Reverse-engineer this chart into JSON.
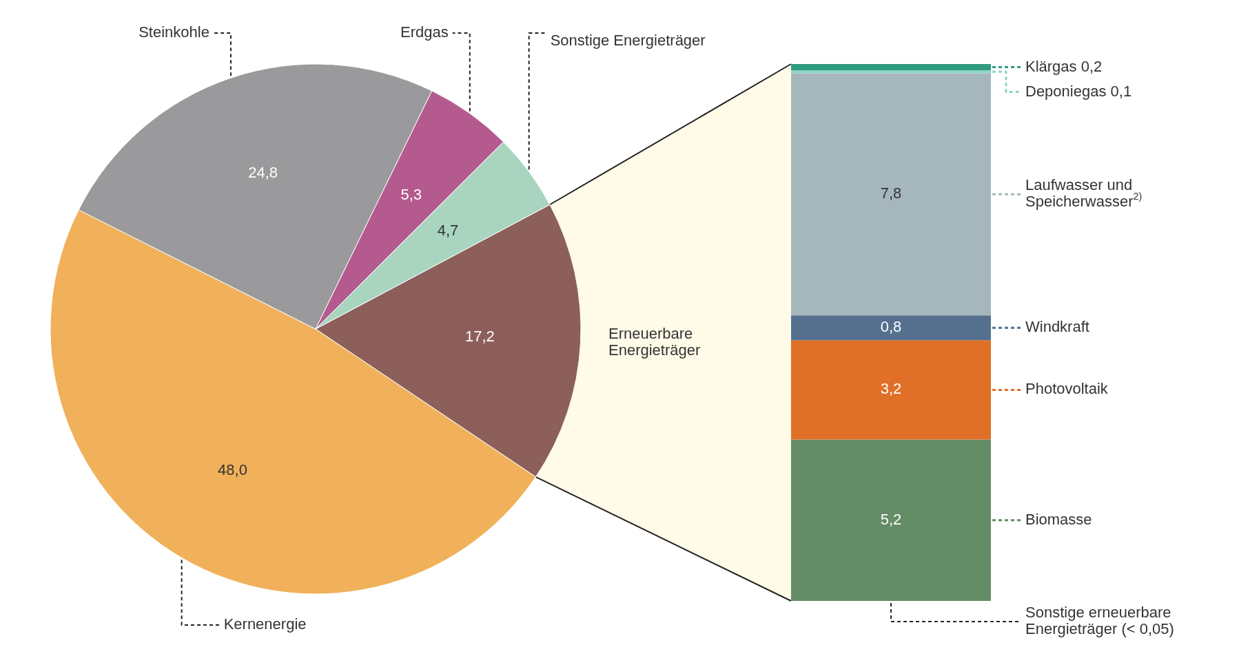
{
  "chart_data": [
    {
      "type": "pie",
      "categories": [
        "Erneuerbare Energieträger",
        "Kernenergie",
        "Steinkohle",
        "Erdgas",
        "Sonstige Energieträger"
      ],
      "values": [
        17.2,
        48.0,
        24.8,
        5.3,
        4.7
      ],
      "value_labels": [
        "17,2",
        "48,0",
        "24,8",
        "5,3",
        "4,7"
      ],
      "colors": [
        "#8c5f5b",
        "#f0b15a",
        "#9a9a9c",
        "#b55a8f",
        "#a9d5c0"
      ]
    },
    {
      "type": "bar",
      "stacked": true,
      "legend": "right",
      "categories": [
        null
      ],
      "annotations": [
        "Sonstige erneuerbare Energieträger (< 0,05)"
      ],
      "series": [
        {
          "name": "Biomasse",
          "color": "#648c66",
          "values": [
            5.2
          ],
          "value_labels": [
            "5,2"
          ]
        },
        {
          "name": "Photovoltaik",
          "color": "#e07028",
          "values": [
            3.2
          ],
          "value_labels": [
            "3,2"
          ]
        },
        {
          "name": "Windkraft",
          "color": "#55708f",
          "values": [
            0.8
          ],
          "value_labels": [
            "0,8"
          ]
        },
        {
          "name": "Laufwasser und Speicherwasser$^{2)}$",
          "color": "#a5b6bc",
          "values": [
            7.8
          ],
          "value_labels": [
            "7,8"
          ]
        },
        {
          "name": "Deponiegas 0,1",
          "color": "#8fd5c4",
          "values": [
            0.1
          ],
          "value_labels": [
            null
          ]
        },
        {
          "name": "Klärgas 0,2",
          "color": "#2f9c80",
          "values": [
            0.2
          ],
          "value_labels": [
            null
          ]
        }
      ]
    }
  ]
}
